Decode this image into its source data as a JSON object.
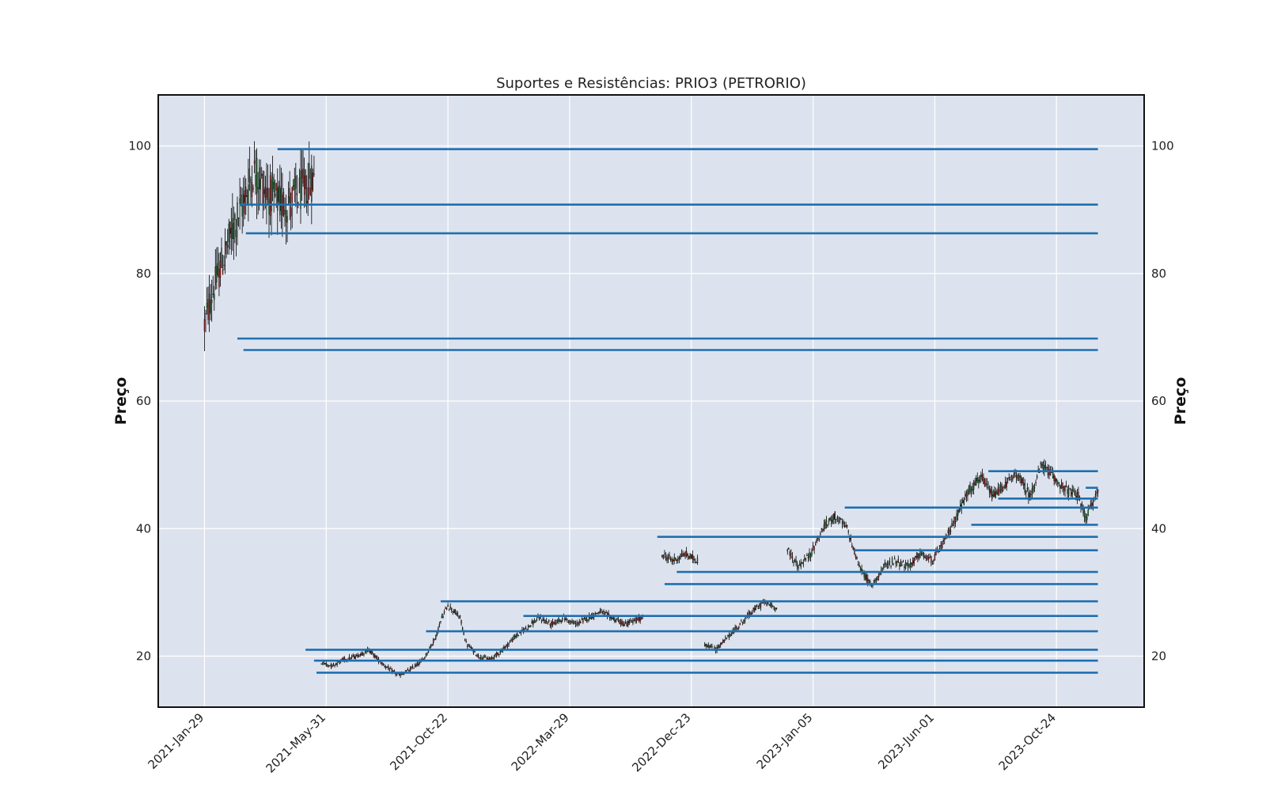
{
  "chart_data": {
    "type": "candlestick",
    "title": "Suportes e Resistências: PRIO3 (PETRORIO)",
    "ylabel_left": "Preço",
    "ylabel_right": "Preço",
    "xlabel": "",
    "ylim": [
      12,
      108
    ],
    "yticks": [
      20,
      40,
      60,
      80,
      100
    ],
    "x_ticks": [
      {
        "i": 0,
        "label": "2021-Jan-29"
      },
      {
        "i": 100,
        "label": "2021-May-31"
      },
      {
        "i": 200,
        "label": "2021-Oct-22"
      },
      {
        "i": 300,
        "label": "2022-Mar-29"
      },
      {
        "i": 400,
        "label": "2022-Dec-23"
      },
      {
        "i": 500,
        "label": "2023-Jan-05"
      },
      {
        "i": 600,
        "label": "2023-Jun-01"
      },
      {
        "i": 700,
        "label": "2023-Oct-24"
      }
    ],
    "x_range": [
      -38,
      772
    ],
    "last_index": 734,
    "price_anchors": [
      [
        0,
        72
      ],
      [
        5,
        76
      ],
      [
        10,
        79
      ],
      [
        15,
        82
      ],
      [
        20,
        85
      ],
      [
        25,
        88
      ],
      [
        30,
        90
      ],
      [
        35,
        93
      ],
      [
        40,
        96
      ],
      [
        45,
        95
      ],
      [
        50,
        93
      ],
      [
        55,
        92
      ],
      [
        62,
        91
      ],
      [
        68,
        91
      ],
      [
        74,
        92
      ],
      [
        80,
        93
      ],
      [
        86,
        94
      ],
      [
        90,
        95
      ],
      [
        95,
        19
      ],
      [
        105,
        18.5
      ],
      [
        115,
        19.5
      ],
      [
        125,
        20
      ],
      [
        135,
        21
      ],
      [
        145,
        19
      ],
      [
        155,
        17.5
      ],
      [
        160,
        17
      ],
      [
        170,
        18
      ],
      [
        180,
        19.5
      ],
      [
        190,
        23
      ],
      [
        195,
        26
      ],
      [
        200,
        28
      ],
      [
        210,
        26
      ],
      [
        215,
        22
      ],
      [
        225,
        20
      ],
      [
        235,
        19.5
      ],
      [
        245,
        21
      ],
      [
        255,
        23
      ],
      [
        265,
        24.5
      ],
      [
        275,
        26
      ],
      [
        285,
        25
      ],
      [
        295,
        26
      ],
      [
        305,
        25
      ],
      [
        315,
        26
      ],
      [
        325,
        27
      ],
      [
        335,
        26
      ],
      [
        345,
        25
      ],
      [
        360,
        26
      ],
      [
        375,
        36
      ],
      [
        385,
        35
      ],
      [
        395,
        36
      ],
      [
        405,
        35
      ],
      [
        410,
        22
      ],
      [
        420,
        21
      ],
      [
        430,
        23
      ],
      [
        440,
        25
      ],
      [
        450,
        27
      ],
      [
        460,
        28.5
      ],
      [
        470,
        27.5
      ],
      [
        478,
        37
      ],
      [
        488,
        34
      ],
      [
        498,
        36
      ],
      [
        508,
        40
      ],
      [
        518,
        42
      ],
      [
        528,
        40
      ],
      [
        538,
        34
      ],
      [
        548,
        31
      ],
      [
        558,
        34
      ],
      [
        568,
        35
      ],
      [
        578,
        34
      ],
      [
        588,
        36
      ],
      [
        598,
        35
      ],
      [
        608,
        38
      ],
      [
        618,
        42
      ],
      [
        628,
        46
      ],
      [
        638,
        48
      ],
      [
        648,
        45
      ],
      [
        658,
        47
      ],
      [
        668,
        48.5
      ],
      [
        678,
        45
      ],
      [
        688,
        50
      ],
      [
        698,
        48
      ],
      [
        708,
        46
      ],
      [
        718,
        45
      ],
      [
        724,
        41.5
      ],
      [
        734,
        46
      ]
    ],
    "gaps": [
      [
        90,
        95
      ],
      [
        360,
        375
      ],
      [
        405,
        410
      ],
      [
        470,
        478
      ]
    ],
    "levels": [
      {
        "price": 99.5,
        "start": 60
      },
      {
        "price": 90.8,
        "start": 29
      },
      {
        "price": 86.3,
        "start": 34
      },
      {
        "price": 69.8,
        "start": 27
      },
      {
        "price": 68.0,
        "start": 32
      },
      {
        "price": 49.0,
        "start": 644
      },
      {
        "price": 46.4,
        "start": 724
      },
      {
        "price": 44.7,
        "start": 652
      },
      {
        "price": 43.3,
        "start": 526
      },
      {
        "price": 40.6,
        "start": 630
      },
      {
        "price": 38.7,
        "start": 372
      },
      {
        "price": 36.6,
        "start": 534
      },
      {
        "price": 33.2,
        "start": 388
      },
      {
        "price": 31.3,
        "start": 378
      },
      {
        "price": 28.6,
        "start": 194
      },
      {
        "price": 26.3,
        "start": 262
      },
      {
        "price": 23.9,
        "start": 182
      },
      {
        "price": 21.0,
        "start": 83
      },
      {
        "price": 19.3,
        "start": 90
      },
      {
        "price": 17.4,
        "start": 92
      }
    ],
    "colors": {
      "plot_bg": "#dde3ee",
      "grid": "#ffffff",
      "frame": "#111111",
      "level_line": "#1f6fb0",
      "candle_up": "#2e8b3e",
      "candle_down": "#c62828",
      "wick": "#000000"
    }
  }
}
